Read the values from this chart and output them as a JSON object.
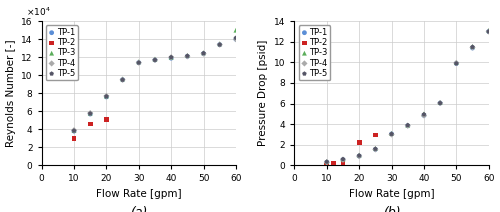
{
  "legend_labels": [
    "TP-1",
    "TP-2",
    "TP-3",
    "TP-4",
    "TP-5"
  ],
  "colors": [
    "#5B8ED6",
    "#CC2222",
    "#5BAD5B",
    "#AAAAAA",
    "#555566"
  ],
  "markers": [
    "o",
    "s",
    "^",
    "D",
    "p"
  ],
  "marker_sizes": [
    12,
    12,
    12,
    10,
    12
  ],
  "Re_flow_rates": [
    [
      10,
      15,
      20,
      25,
      30,
      35,
      40,
      45,
      50,
      55,
      60
    ],
    [
      10,
      15,
      20
    ],
    [
      10,
      15,
      20,
      25,
      30,
      35,
      40,
      45,
      50,
      55,
      60
    ],
    [
      10,
      15,
      20,
      25,
      30,
      35,
      40,
      45,
      50,
      55,
      60
    ],
    [
      10,
      15,
      20,
      25,
      30,
      35,
      40,
      45,
      50,
      55,
      60
    ]
  ],
  "Re_values": [
    [
      3.8,
      5.7,
      7.6,
      9.5,
      11.4,
      11.7,
      11.9,
      12.1,
      12.4,
      13.4,
      14.0
    ],
    [
      3.0,
      4.6,
      5.1
    ],
    [
      3.9,
      5.8,
      7.7,
      9.6,
      11.5,
      11.8,
      12.0,
      12.2,
      12.5,
      13.5,
      15.0
    ],
    [
      3.9,
      5.8,
      7.7,
      9.5,
      11.4,
      11.7,
      12.0,
      12.1,
      12.4,
      13.4,
      14.0
    ],
    [
      3.85,
      5.75,
      7.65,
      9.5,
      11.4,
      11.7,
      12.0,
      12.15,
      12.45,
      13.4,
      14.15
    ]
  ],
  "dP_flow_rates": [
    [
      10,
      15,
      20,
      25,
      30,
      35,
      40,
      45,
      50,
      55,
      60
    ],
    [
      10,
      12,
      15,
      20,
      25
    ],
    [
      10,
      15,
      20,
      25,
      30,
      35,
      40,
      45,
      50,
      55,
      60
    ],
    [
      10,
      15,
      20,
      25,
      30,
      35,
      40,
      45,
      50,
      55,
      60
    ],
    [
      10,
      15,
      20,
      25,
      30,
      35,
      40,
      45,
      50,
      55,
      60
    ]
  ],
  "dP_values": [
    [
      0.3,
      0.55,
      0.9,
      1.55,
      3.05,
      3.85,
      4.85,
      6.05,
      9.9,
      11.4,
      13.0
    ],
    [
      0.05,
      0.15,
      0.2,
      2.2,
      2.95
    ],
    [
      0.35,
      0.6,
      1.0,
      1.65,
      3.1,
      3.9,
      5.0,
      6.1,
      10.0,
      11.55,
      13.1
    ],
    [
      0.3,
      0.55,
      0.9,
      1.55,
      3.0,
      3.85,
      4.85,
      6.05,
      9.95,
      11.45,
      13.0
    ],
    [
      0.35,
      0.6,
      0.95,
      1.6,
      3.05,
      3.9,
      4.95,
      6.05,
      9.9,
      11.5,
      13.0
    ]
  ],
  "Re_xlim": [
    0,
    60
  ],
  "Re_ylim": [
    0,
    160000
  ],
  "Re_xticks": [
    0,
    10,
    20,
    30,
    40,
    50,
    60
  ],
  "Re_yticks": [
    0,
    20000,
    40000,
    60000,
    80000,
    100000,
    120000,
    140000,
    160000
  ],
  "Re_xlabel": "Flow Rate [gpm]",
  "Re_ylabel": "Reynolds Number [-]",
  "dP_xlim": [
    0,
    60
  ],
  "dP_ylim": [
    0,
    14
  ],
  "dP_xticks": [
    0,
    10,
    20,
    30,
    40,
    50,
    60
  ],
  "dP_yticks": [
    0,
    2,
    4,
    6,
    8,
    10,
    12,
    14
  ],
  "dP_xlabel": "Flow Rate [gpm]",
  "dP_ylabel": "Pressure Drop [psid]",
  "label_a": "(a)",
  "label_b": "(b)",
  "fig_bg": "#ffffff",
  "axes_bg": "#ffffff",
  "grid_color": "#cccccc",
  "tick_fontsize": 6.5,
  "label_fontsize": 7.5,
  "legend_fontsize": 6.0
}
